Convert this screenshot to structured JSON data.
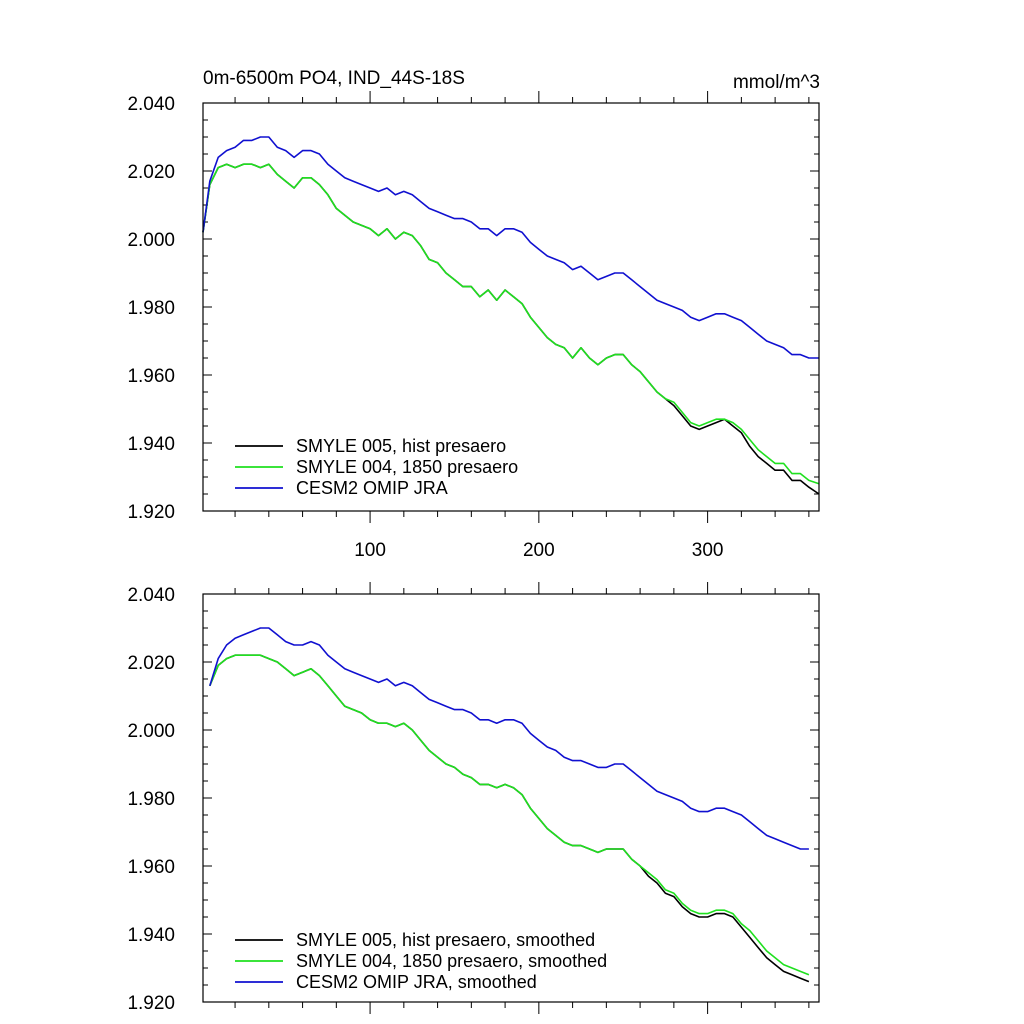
{
  "chart_data": [
    {
      "type": "line",
      "title": "0m-6500m PO4, IND_44S-18S",
      "units": "mmol/m^3",
      "xlim": [
        1,
        366
      ],
      "ylim": [
        1.92,
        2.04
      ],
      "xticks": [
        100,
        200,
        300
      ],
      "xtick_labels": [
        "100",
        "200",
        "300"
      ],
      "yticks": [
        1.92,
        1.94,
        1.96,
        1.98,
        2.0,
        2.02,
        2.04
      ],
      "ytick_labels": [
        "1.920",
        "1.940",
        "1.960",
        "1.980",
        "2.000",
        "2.020",
        "2.040"
      ],
      "legend_position": "bottom-left",
      "series": [
        {
          "name": "SMYLE 005, hist presaero",
          "color": "#000000",
          "x": [
            1,
            5,
            10,
            15,
            20,
            25,
            30,
            35,
            40,
            45,
            50,
            55,
            60,
            65,
            70,
            75,
            80,
            85,
            90,
            95,
            100,
            105,
            110,
            115,
            120,
            125,
            130,
            135,
            140,
            145,
            150,
            155,
            160,
            165,
            170,
            175,
            180,
            185,
            190,
            195,
            200,
            205,
            210,
            215,
            220,
            225,
            230,
            235,
            240,
            245,
            250,
            255,
            260,
            265,
            270,
            275,
            280,
            285,
            290,
            295,
            300,
            305,
            310,
            315,
            320,
            325,
            330,
            335,
            340,
            345,
            350,
            355,
            360,
            366
          ],
          "values": [
            2.002,
            2.016,
            2.021,
            2.022,
            2.021,
            2.022,
            2.022,
            2.021,
            2.022,
            2.019,
            2.017,
            2.015,
            2.018,
            2.018,
            2.016,
            2.013,
            2.009,
            2.007,
            2.005,
            2.004,
            2.003,
            2.001,
            2.003,
            2.0,
            2.002,
            2.001,
            1.998,
            1.994,
            1.993,
            1.99,
            1.988,
            1.986,
            1.986,
            1.983,
            1.985,
            1.982,
            1.985,
            1.983,
            1.981,
            1.977,
            1.974,
            1.971,
            1.969,
            1.968,
            1.965,
            1.968,
            1.965,
            1.963,
            1.965,
            1.966,
            1.966,
            1.963,
            1.961,
            1.958,
            1.955,
            1.953,
            1.951,
            1.948,
            1.945,
            1.944,
            1.945,
            1.946,
            1.947,
            1.945,
            1.943,
            1.939,
            1.936,
            1.934,
            1.932,
            1.932,
            1.929,
            1.929,
            1.927,
            1.925
          ]
        },
        {
          "name": "SMYLE 004, 1850 presaero",
          "color": "#1fe01f",
          "x": [
            1,
            5,
            10,
            15,
            20,
            25,
            30,
            35,
            40,
            45,
            50,
            55,
            60,
            65,
            70,
            75,
            80,
            85,
            90,
            95,
            100,
            105,
            110,
            115,
            120,
            125,
            130,
            135,
            140,
            145,
            150,
            155,
            160,
            165,
            170,
            175,
            180,
            185,
            190,
            195,
            200,
            205,
            210,
            215,
            220,
            225,
            230,
            235,
            240,
            245,
            250,
            255,
            260,
            265,
            270,
            275,
            280,
            285,
            290,
            295,
            300,
            305,
            310,
            315,
            320,
            325,
            330,
            335,
            340,
            345,
            350,
            355,
            360,
            366
          ],
          "values": [
            2.002,
            2.016,
            2.021,
            2.022,
            2.021,
            2.022,
            2.022,
            2.021,
            2.022,
            2.019,
            2.017,
            2.015,
            2.018,
            2.018,
            2.016,
            2.013,
            2.009,
            2.007,
            2.005,
            2.004,
            2.003,
            2.001,
            2.003,
            2.0,
            2.002,
            2.001,
            1.998,
            1.994,
            1.993,
            1.99,
            1.988,
            1.986,
            1.986,
            1.983,
            1.985,
            1.982,
            1.985,
            1.983,
            1.981,
            1.977,
            1.974,
            1.971,
            1.969,
            1.968,
            1.965,
            1.968,
            1.965,
            1.963,
            1.965,
            1.966,
            1.966,
            1.963,
            1.961,
            1.958,
            1.955,
            1.953,
            1.952,
            1.949,
            1.946,
            1.945,
            1.946,
            1.947,
            1.947,
            1.946,
            1.944,
            1.941,
            1.938,
            1.936,
            1.934,
            1.934,
            1.931,
            1.931,
            1.929,
            1.928
          ]
        },
        {
          "name": "CESM2 OMIP JRA",
          "color": "#1010d0",
          "x": [
            1,
            5,
            10,
            15,
            20,
            25,
            30,
            35,
            40,
            45,
            50,
            55,
            60,
            65,
            70,
            75,
            80,
            85,
            90,
            95,
            100,
            105,
            110,
            115,
            120,
            125,
            130,
            135,
            140,
            145,
            150,
            155,
            160,
            165,
            170,
            175,
            180,
            185,
            190,
            195,
            200,
            205,
            210,
            215,
            220,
            225,
            230,
            235,
            240,
            245,
            250,
            255,
            260,
            265,
            270,
            275,
            280,
            285,
            290,
            295,
            300,
            305,
            310,
            315,
            320,
            325,
            330,
            335,
            340,
            345,
            350,
            355,
            360,
            366
          ],
          "values": [
            2.002,
            2.017,
            2.024,
            2.026,
            2.027,
            2.029,
            2.029,
            2.03,
            2.03,
            2.027,
            2.026,
            2.024,
            2.026,
            2.026,
            2.025,
            2.022,
            2.02,
            2.018,
            2.017,
            2.016,
            2.015,
            2.014,
            2.015,
            2.013,
            2.014,
            2.013,
            2.011,
            2.009,
            2.008,
            2.007,
            2.006,
            2.006,
            2.005,
            2.003,
            2.003,
            2.001,
            2.003,
            2.003,
            2.002,
            1.999,
            1.997,
            1.995,
            1.994,
            1.993,
            1.991,
            1.992,
            1.99,
            1.988,
            1.989,
            1.99,
            1.99,
            1.988,
            1.986,
            1.984,
            1.982,
            1.981,
            1.98,
            1.979,
            1.977,
            1.976,
            1.977,
            1.978,
            1.978,
            1.977,
            1.976,
            1.974,
            1.972,
            1.97,
            1.969,
            1.968,
            1.966,
            1.966,
            1.965,
            1.965
          ]
        }
      ]
    },
    {
      "type": "line",
      "title": "",
      "units": "",
      "xlim": [
        1,
        366
      ],
      "ylim": [
        1.92,
        2.04
      ],
      "xticks": [
        100,
        200,
        300
      ],
      "xtick_labels": [],
      "yticks": [
        1.92,
        1.94,
        1.96,
        1.98,
        2.0,
        2.02,
        2.04
      ],
      "ytick_labels": [
        "1.920",
        "1.940",
        "1.960",
        "1.980",
        "2.000",
        "2.020",
        "2.040"
      ],
      "legend_position": "bottom-left",
      "series": [
        {
          "name": "SMYLE 005, hist presaero, smoothed",
          "color": "#000000",
          "x": [
            5,
            10,
            15,
            20,
            25,
            30,
            35,
            40,
            45,
            50,
            55,
            60,
            65,
            70,
            75,
            80,
            85,
            90,
            95,
            100,
            105,
            110,
            115,
            120,
            125,
            130,
            135,
            140,
            145,
            150,
            155,
            160,
            165,
            170,
            175,
            180,
            185,
            190,
            195,
            200,
            205,
            210,
            215,
            220,
            225,
            230,
            235,
            240,
            245,
            250,
            255,
            260,
            265,
            270,
            275,
            280,
            285,
            290,
            295,
            300,
            305,
            310,
            315,
            320,
            325,
            330,
            335,
            340,
            345,
            350,
            355,
            360
          ],
          "values": [
            2.013,
            2.019,
            2.021,
            2.022,
            2.022,
            2.022,
            2.022,
            2.021,
            2.02,
            2.018,
            2.016,
            2.017,
            2.018,
            2.016,
            2.013,
            2.01,
            2.007,
            2.006,
            2.005,
            2.003,
            2.002,
            2.002,
            2.001,
            2.002,
            2.0,
            1.997,
            1.994,
            1.992,
            1.99,
            1.989,
            1.987,
            1.986,
            1.984,
            1.984,
            1.983,
            1.984,
            1.983,
            1.981,
            1.977,
            1.974,
            1.971,
            1.969,
            1.967,
            1.966,
            1.966,
            1.965,
            1.964,
            1.965,
            1.965,
            1.965,
            1.962,
            1.96,
            1.957,
            1.955,
            1.952,
            1.951,
            1.948,
            1.946,
            1.945,
            1.945,
            1.946,
            1.946,
            1.945,
            1.942,
            1.939,
            1.936,
            1.933,
            1.931,
            1.929,
            1.928,
            1.927,
            1.926
          ]
        },
        {
          "name": "SMYLE 004, 1850 presaero, smoothed",
          "color": "#1fe01f",
          "x": [
            5,
            10,
            15,
            20,
            25,
            30,
            35,
            40,
            45,
            50,
            55,
            60,
            65,
            70,
            75,
            80,
            85,
            90,
            95,
            100,
            105,
            110,
            115,
            120,
            125,
            130,
            135,
            140,
            145,
            150,
            155,
            160,
            165,
            170,
            175,
            180,
            185,
            190,
            195,
            200,
            205,
            210,
            215,
            220,
            225,
            230,
            235,
            240,
            245,
            250,
            255,
            260,
            265,
            270,
            275,
            280,
            285,
            290,
            295,
            300,
            305,
            310,
            315,
            320,
            325,
            330,
            335,
            340,
            345,
            350,
            355,
            360
          ],
          "values": [
            2.013,
            2.019,
            2.021,
            2.022,
            2.022,
            2.022,
            2.022,
            2.021,
            2.02,
            2.018,
            2.016,
            2.017,
            2.018,
            2.016,
            2.013,
            2.01,
            2.007,
            2.006,
            2.005,
            2.003,
            2.002,
            2.002,
            2.001,
            2.002,
            2.0,
            1.997,
            1.994,
            1.992,
            1.99,
            1.989,
            1.987,
            1.986,
            1.984,
            1.984,
            1.983,
            1.984,
            1.983,
            1.981,
            1.977,
            1.974,
            1.971,
            1.969,
            1.967,
            1.966,
            1.966,
            1.965,
            1.964,
            1.965,
            1.965,
            1.965,
            1.962,
            1.96,
            1.958,
            1.956,
            1.953,
            1.952,
            1.949,
            1.947,
            1.946,
            1.946,
            1.947,
            1.947,
            1.946,
            1.943,
            1.941,
            1.938,
            1.935,
            1.933,
            1.931,
            1.93,
            1.929,
            1.928
          ]
        },
        {
          "name": "CESM2 OMIP JRA, smoothed",
          "color": "#1010d0",
          "x": [
            5,
            10,
            15,
            20,
            25,
            30,
            35,
            40,
            45,
            50,
            55,
            60,
            65,
            70,
            75,
            80,
            85,
            90,
            95,
            100,
            105,
            110,
            115,
            120,
            125,
            130,
            135,
            140,
            145,
            150,
            155,
            160,
            165,
            170,
            175,
            180,
            185,
            190,
            195,
            200,
            205,
            210,
            215,
            220,
            225,
            230,
            235,
            240,
            245,
            250,
            255,
            260,
            265,
            270,
            275,
            280,
            285,
            290,
            295,
            300,
            305,
            310,
            315,
            320,
            325,
            330,
            335,
            340,
            345,
            350,
            355,
            360
          ],
          "values": [
            2.013,
            2.021,
            2.025,
            2.027,
            2.028,
            2.029,
            2.03,
            2.03,
            2.028,
            2.026,
            2.025,
            2.025,
            2.026,
            2.025,
            2.022,
            2.02,
            2.018,
            2.017,
            2.016,
            2.015,
            2.014,
            2.015,
            2.013,
            2.014,
            2.013,
            2.011,
            2.009,
            2.008,
            2.007,
            2.006,
            2.006,
            2.005,
            2.003,
            2.003,
            2.002,
            2.003,
            2.003,
            2.002,
            1.999,
            1.997,
            1.995,
            1.994,
            1.992,
            1.991,
            1.991,
            1.99,
            1.989,
            1.989,
            1.99,
            1.99,
            1.988,
            1.986,
            1.984,
            1.982,
            1.981,
            1.98,
            1.979,
            1.977,
            1.976,
            1.976,
            1.977,
            1.977,
            1.976,
            1.975,
            1.973,
            1.971,
            1.969,
            1.968,
            1.967,
            1.966,
            1.965,
            1.965
          ]
        }
      ]
    }
  ]
}
